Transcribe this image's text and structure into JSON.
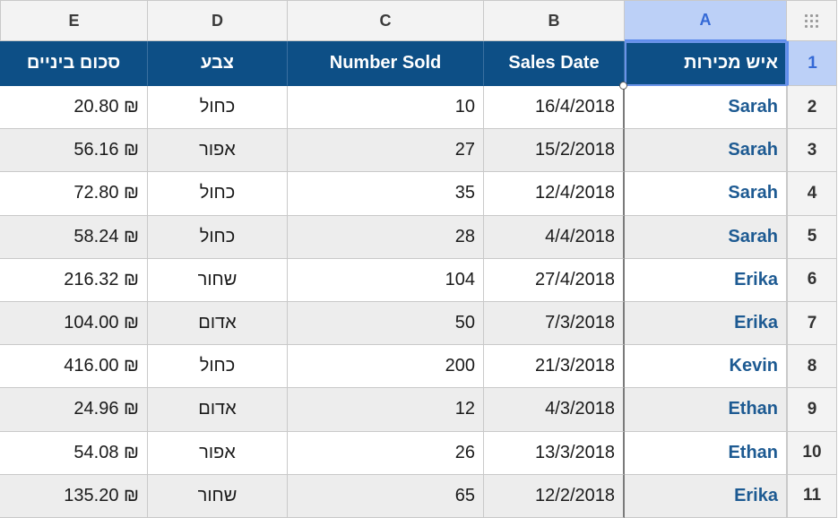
{
  "column_headers": [
    "E",
    "D",
    "C",
    "B",
    "A"
  ],
  "selected_column": "A",
  "header_row": {
    "row_number": "1",
    "cells": [
      "סכום ביניים",
      "צבע",
      "Number Sold",
      "Sales Date",
      "איש מכירות"
    ]
  },
  "rows": [
    {
      "num": "2",
      "subtotal": "20.80 ₪",
      "color": "כחול",
      "sold": "10",
      "date": "16/4/2018",
      "salesperson": "Sarah"
    },
    {
      "num": "3",
      "subtotal": "56.16 ₪",
      "color": "אפור",
      "sold": "27",
      "date": "15/2/2018",
      "salesperson": "Sarah"
    },
    {
      "num": "4",
      "subtotal": "72.80 ₪",
      "color": "כחול",
      "sold": "35",
      "date": "12/4/2018",
      "salesperson": "Sarah"
    },
    {
      "num": "5",
      "subtotal": "58.24 ₪",
      "color": "כחול",
      "sold": "28",
      "date": "4/4/2018",
      "salesperson": "Sarah"
    },
    {
      "num": "6",
      "subtotal": "216.32 ₪",
      "color": "שחור",
      "sold": "104",
      "date": "27/4/2018",
      "salesperson": "Erika"
    },
    {
      "num": "7",
      "subtotal": "104.00 ₪",
      "color": "אדום",
      "sold": "50",
      "date": "7/3/2018",
      "salesperson": "Erika"
    },
    {
      "num": "8",
      "subtotal": "416.00 ₪",
      "color": "כחול",
      "sold": "200",
      "date": "21/3/2018",
      "salesperson": "Kevin"
    },
    {
      "num": "9",
      "subtotal": "24.96 ₪",
      "color": "אדום",
      "sold": "12",
      "date": "4/3/2018",
      "salesperson": "Ethan"
    },
    {
      "num": "10",
      "subtotal": "54.08 ₪",
      "color": "אפור",
      "sold": "26",
      "date": "13/3/2018",
      "salesperson": "Ethan"
    },
    {
      "num": "11",
      "subtotal": "135.20 ₪",
      "color": "שחור",
      "sold": "65",
      "date": "12/2/2018",
      "salesperson": "Erika"
    }
  ],
  "colors": {
    "header_bg": "#0d4f86",
    "selection": "#bcd0f7",
    "name_text": "#1d5a92",
    "alt_row": "#ededed"
  },
  "icons": {
    "corner": "grid-dots-icon"
  }
}
